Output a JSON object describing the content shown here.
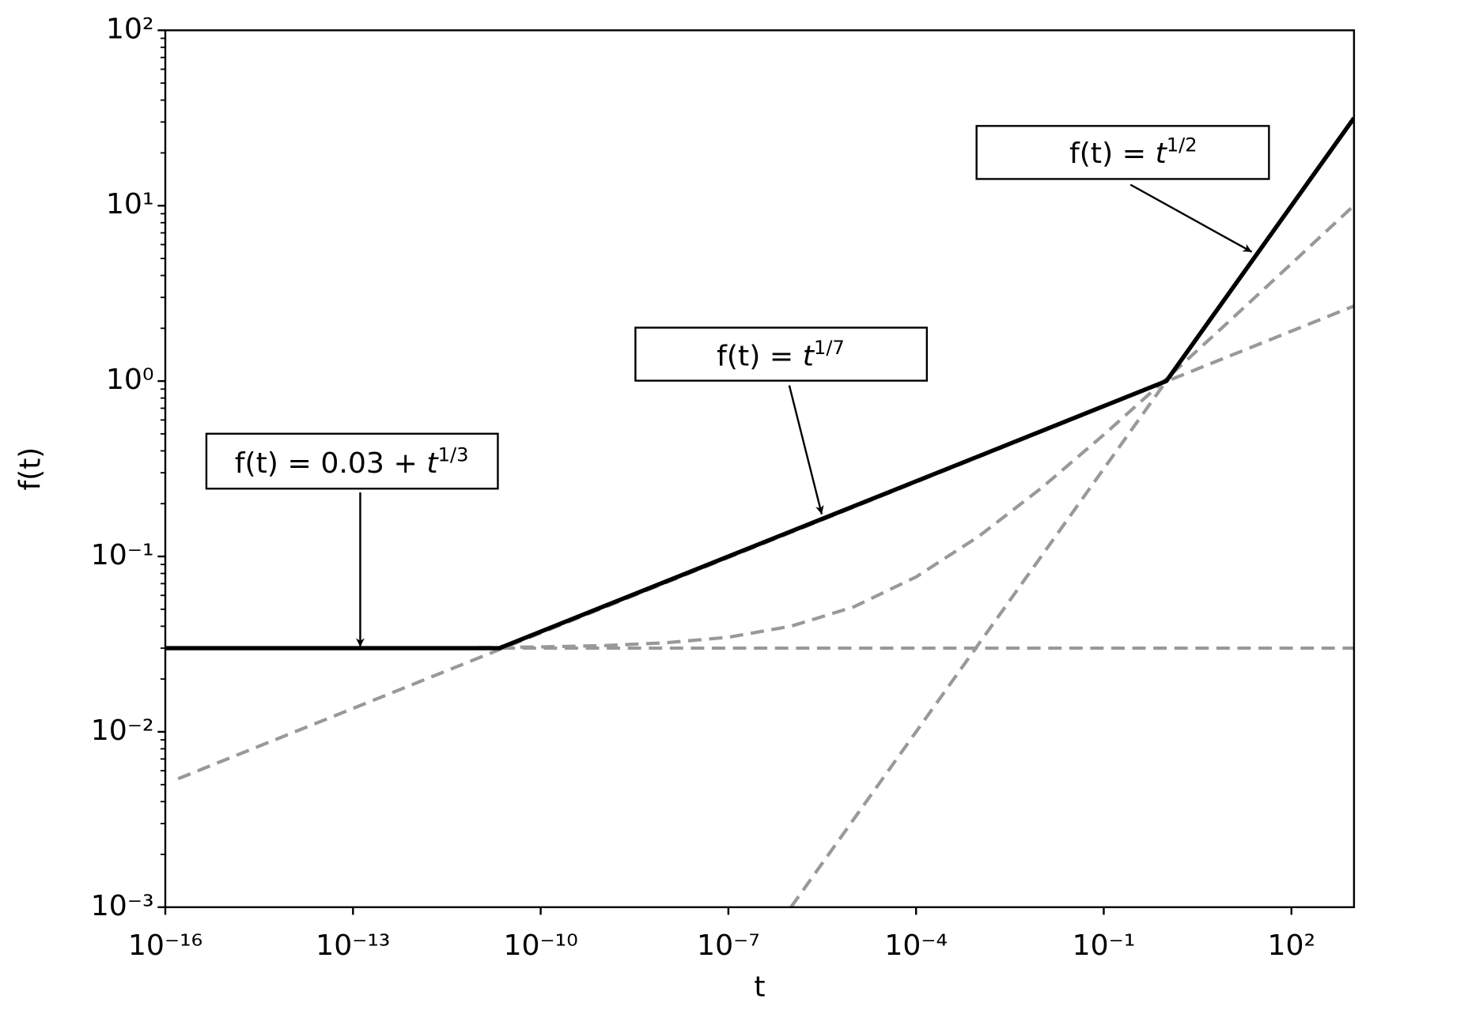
{
  "chart_data": {
    "type": "line",
    "xlabel": "t",
    "ylabel": "f(t)",
    "xscale": "log",
    "yscale": "log",
    "xlim": [
      1e-16,
      1000
    ],
    "ylim": [
      0.001,
      100
    ],
    "xticks": [
      {
        "value": 1e-16,
        "label": "10⁻¹⁶"
      },
      {
        "value": 1e-13,
        "label": "10⁻¹³"
      },
      {
        "value": 1e-10,
        "label": "10⁻¹⁰"
      },
      {
        "value": 1e-07,
        "label": "10⁻⁷"
      },
      {
        "value": 0.0001,
        "label": "10⁻⁴"
      },
      {
        "value": 0.1,
        "label": "10⁻¹"
      },
      {
        "value": 100,
        "label": "10²"
      }
    ],
    "yticks": [
      {
        "value": 0.001,
        "label": "10⁻³"
      },
      {
        "value": 0.01,
        "label": "10⁻²"
      },
      {
        "value": 0.1,
        "label": "10⁻¹"
      },
      {
        "value": 1,
        "label": "10⁰"
      },
      {
        "value": 10,
        "label": "10¹"
      },
      {
        "value": 100,
        "label": "10²"
      }
    ],
    "minor_ticks": true,
    "series": [
      {
        "color": "#999999",
        "style": "dashed",
        "x": [
          1e-16,
          1000
        ],
        "values": [
          0.03,
          0.03
        ]
      },
      {
        "color": "#999999",
        "style": "dashed",
        "x": [
          1.6e-16,
          1000
        ],
        "values": [
          0.0054,
          2.68
        ]
      },
      {
        "color": "#999999",
        "style": "dashed",
        "x": [
          1e-06,
          1000
        ],
        "values": [
          0.001,
          31.62
        ]
      },
      {
        "color": "#999999",
        "style": "dashed",
        "x": [
          1e-11,
          1e-10,
          1e-09,
          1e-08,
          1e-07,
          1e-06,
          1e-05,
          0.0001,
          0.001,
          0.01,
          0.1,
          1,
          10,
          100,
          1000
        ],
        "values": [
          0.0302,
          0.0305,
          0.031,
          0.0322,
          0.0346,
          0.04,
          0.0515,
          0.0764,
          0.13,
          0.245,
          0.494,
          1.03,
          2.184,
          4.672,
          10.03
        ]
      },
      {
        "color": "#000000",
        "style": "solid",
        "x": [
          1e-16,
          2.187e-11,
          1,
          1000
        ],
        "values": [
          0.03,
          0.03,
          1,
          31.62
        ]
      }
    ],
    "annotations": [
      {
        "prefix": "f(t) = 0.03 + ",
        "base": "t",
        "exponent": "1/3"
      },
      {
        "prefix": "f(t) = ",
        "base": "t",
        "exponent": "1/7"
      },
      {
        "prefix": "f(t) = ",
        "base": "t",
        "exponent": "1/2"
      }
    ]
  }
}
